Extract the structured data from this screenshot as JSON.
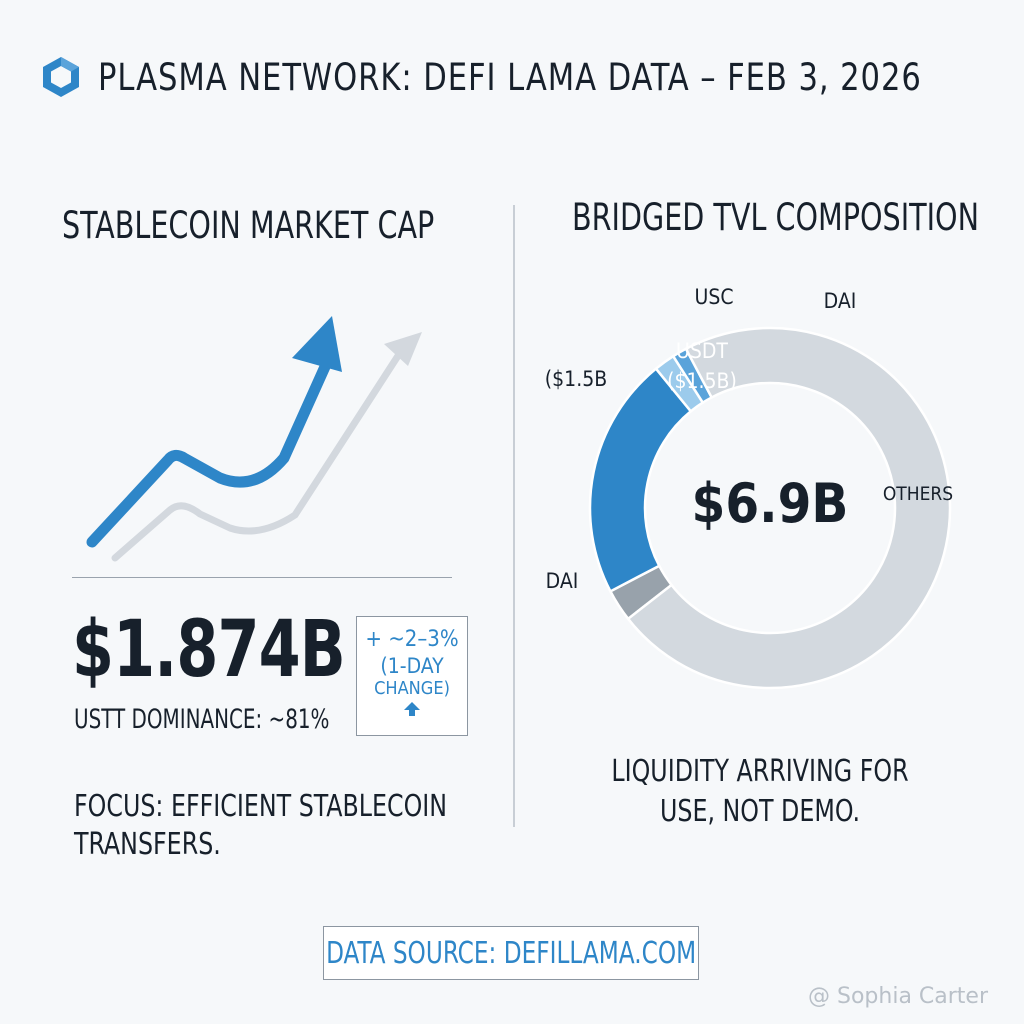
{
  "header": {
    "title": "PLASMA NETWORK: DEFI LAMA DATA – FEB 3, 2026",
    "logo_icon": "hexagon-logo-icon",
    "accent_color": "#2e86c8"
  },
  "left_panel": {
    "heading": "STABLECOIN MARKET CAP",
    "trend_icon": "upward-trend-arrow-icon",
    "value": "$1.874B",
    "dominance": "USTT DOMINANCE: ~81%",
    "change": {
      "line1": "+ ~2–3%",
      "line2": "(1-DAY",
      "line3": "CHANGE)",
      "arrow_icon": "up-arrow-icon"
    },
    "focus_line1": "FOCUS: EFFICIENT STABLECOIN",
    "focus_line2": "TRANSFERS."
  },
  "right_panel": {
    "heading": "BRIDGED TVL COMPOSITION",
    "liquidity_line1": "LIQUIDITY ARRIVING FOR",
    "liquidity_line2": "USE, NOT DEMO."
  },
  "chart_data": {
    "type": "pie",
    "title": "BRIDGED TVL COMPOSITION",
    "center_label": "$6.9B",
    "slices": [
      {
        "label": "USDT",
        "value_label": "($1.5B)",
        "value": 1.5,
        "color": "#2e86c8"
      },
      {
        "label": "DAI",
        "value": 0.2,
        "color": "#98a2ab"
      },
      {
        "label": "OTHERS",
        "value": 4.98,
        "color": "#d3d9df"
      },
      {
        "label": "DAI",
        "value": 0.09,
        "color": "#5aa3da"
      },
      {
        "label": "USC",
        "value": 0.13,
        "color": "#9ccbec"
      }
    ],
    "outer_labels": {
      "usc": "USC",
      "dai_top": "DAI",
      "usdt_left": "($1.5B",
      "dai_left": "DAI",
      "others": "OTHERS"
    }
  },
  "footer": {
    "source": "DATA SOURCE: DEFILLAMA.COM",
    "watermark": "@ Sophia Carter"
  }
}
